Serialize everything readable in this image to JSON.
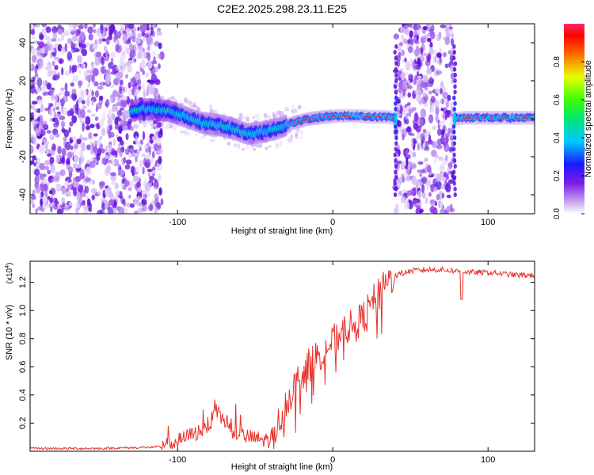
{
  "title": "C2E2.2025.298.23.11.E25",
  "chart_data": [
    {
      "type": "heatmap",
      "name": "spectrogram",
      "xlabel": "Height of straight line (km)",
      "ylabel": "Frequency (Hz)",
      "xlim": [
        -195,
        130
      ],
      "ylim": [
        -50,
        50
      ],
      "x_ticks": [
        -100,
        0,
        100
      ],
      "y_ticks": [
        -40,
        -20,
        0,
        20,
        40
      ],
      "colorbar": {
        "label": "Normalized spectral amplitude",
        "range": [
          0,
          1
        ],
        "ticks": [
          "0.0",
          "0.2",
          "0.4",
          "0.6",
          "0.8"
        ]
      },
      "ridge": {
        "x": [
          -135,
          -125,
          -115,
          -105,
          -95,
          -85,
          -75,
          -65,
          -55,
          -45,
          -35,
          -25,
          -15,
          -5,
          5,
          15,
          25,
          35,
          40,
          45,
          75,
          80,
          85,
          95,
          105,
          115,
          130
        ],
        "y": [
          3,
          5,
          5,
          4,
          1,
          -2,
          -3,
          -5,
          -8,
          -7,
          -5,
          -2,
          0,
          1,
          1.5,
          1.5,
          1,
          1,
          0,
          0,
          0,
          0,
          0.5,
          0.5,
          0.5,
          0.5,
          0.5
        ]
      },
      "noise_regions": [
        [
          -195,
          -110
        ],
        [
          40,
          78
        ]
      ]
    },
    {
      "type": "line",
      "name": "snr",
      "xlabel": "Height of straight line (km)",
      "ylabel": "SNR (10 * v/v)",
      "y_multiplier": "(x10",
      "y_multiplier_exp": "4",
      "y_multiplier_close": ")",
      "xlim": [
        -195,
        130
      ],
      "ylim": [
        0,
        1.35
      ],
      "x_ticks": [
        -100,
        0,
        100
      ],
      "y_ticks": [
        "0.2",
        "0.4",
        "0.6",
        "0.8",
        "1.0",
        "1.2"
      ],
      "color": "#e8302a",
      "x": [
        -195,
        -150,
        -110,
        -100,
        -90,
        -80,
        -75,
        -70,
        -65,
        -60,
        -55,
        -50,
        -45,
        -40,
        -35,
        -30,
        -25,
        -20,
        -15,
        -10,
        -5,
        0,
        5,
        10,
        15,
        20,
        25,
        30,
        35,
        40,
        50,
        60,
        70,
        80,
        90,
        100,
        110,
        120,
        130
      ],
      "y": [
        0.02,
        0.02,
        0.03,
        0.07,
        0.12,
        0.18,
        0.28,
        0.22,
        0.15,
        0.12,
        0.1,
        0.09,
        0.08,
        0.08,
        0.2,
        0.35,
        0.45,
        0.55,
        0.62,
        0.68,
        0.72,
        0.78,
        0.84,
        0.88,
        0.9,
        0.96,
        1.05,
        1.12,
        1.2,
        1.25,
        1.28,
        1.29,
        1.29,
        1.28,
        1.27,
        1.27,
        1.26,
        1.25,
        1.25
      ]
    }
  ]
}
